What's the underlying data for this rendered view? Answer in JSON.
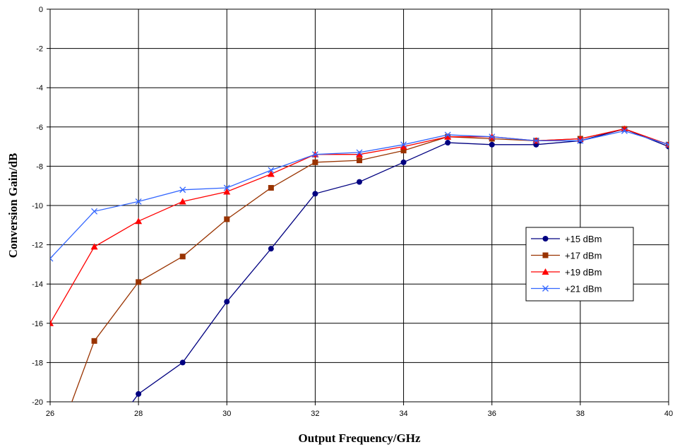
{
  "chart_data": {
    "type": "line",
    "title": "",
    "xlabel": "Output Frequency/GHz",
    "ylabel": "Conversion Gain/dB",
    "xlim": [
      26,
      40
    ],
    "ylim": [
      -20,
      0
    ],
    "x_ticks": [
      26,
      28,
      30,
      32,
      34,
      36,
      38,
      40
    ],
    "y_ticks": [
      0,
      -2,
      -4,
      -6,
      -8,
      -10,
      -12,
      -14,
      -16,
      -18,
      -20
    ],
    "grid": true,
    "legend_position": "right",
    "series": [
      {
        "name": "+15 dBm",
        "color": "#000080",
        "marker": "circle",
        "x": [
          27.7,
          28,
          29,
          30,
          31,
          32,
          33,
          34,
          35,
          36,
          37,
          38,
          39,
          40
        ],
        "y": [
          -20.5,
          -19.6,
          -18.0,
          -14.9,
          -12.2,
          -9.4,
          -8.8,
          -7.8,
          -6.8,
          -6.9,
          -6.9,
          -6.7,
          -6.1,
          -7.0
        ]
      },
      {
        "name": "+17 dBm",
        "color": "#993300",
        "marker": "square",
        "x": [
          26,
          27,
          28,
          29,
          30,
          31,
          32,
          33,
          34,
          35,
          36,
          37,
          38,
          39,
          40
        ],
        "y": [
          -23.0,
          -16.9,
          -13.9,
          -12.6,
          -10.7,
          -9.1,
          -7.8,
          -7.7,
          -7.2,
          -6.5,
          -6.6,
          -6.7,
          -6.6,
          -6.1,
          -6.9
        ]
      },
      {
        "name": "+19 dBm",
        "color": "#ff0000",
        "marker": "triangle",
        "x": [
          26,
          27,
          28,
          29,
          30,
          31,
          32,
          33,
          34,
          35,
          36,
          37,
          38,
          39,
          40
        ],
        "y": [
          -16.0,
          -12.1,
          -10.8,
          -9.8,
          -9.3,
          -8.4,
          -7.4,
          -7.4,
          -7.0,
          -6.5,
          -6.5,
          -6.7,
          -6.6,
          -6.1,
          -6.9
        ]
      },
      {
        "name": "+21 dBm",
        "color": "#3366ff",
        "marker": "x",
        "x": [
          26,
          27,
          28,
          29,
          30,
          31,
          32,
          33,
          34,
          35,
          36,
          37,
          38,
          39,
          40
        ],
        "y": [
          -12.7,
          -10.3,
          -9.8,
          -9.2,
          -9.1,
          -8.2,
          -7.4,
          -7.3,
          -6.9,
          -6.4,
          -6.5,
          -6.7,
          -6.7,
          -6.2,
          -6.9
        ]
      }
    ]
  }
}
